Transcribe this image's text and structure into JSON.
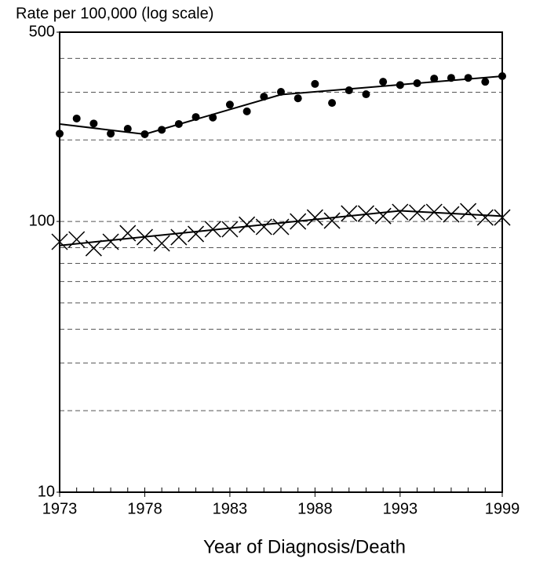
{
  "chart_data": {
    "type": "scatter",
    "y_axis_title": "Rate per 100,000 (log scale)",
    "x_axis_title": "Year of Diagnosis/Death",
    "log_y": true,
    "xlim": [
      1973,
      1999
    ],
    "xticks": [
      1973,
      1978,
      1983,
      1988,
      1993,
      1999
    ],
    "ylim": [
      10,
      500
    ],
    "yticks": [
      10,
      100,
      500
    ],
    "grid_values": [
      20,
      30,
      40,
      50,
      60,
      70,
      80,
      100,
      200,
      300,
      400
    ],
    "x": [
      1973,
      1974,
      1975,
      1976,
      1977,
      1978,
      1979,
      1980,
      1981,
      1982,
      1983,
      1984,
      1985,
      1986,
      1987,
      1988,
      1989,
      1990,
      1991,
      1992,
      1993,
      1994,
      1995,
      1996,
      1997,
      1998,
      1999
    ],
    "series": [
      {
        "marker": "circle",
        "color": "#000000",
        "values": [
          211,
          240,
          230,
          211,
          220,
          210,
          218,
          229,
          243,
          242,
          270,
          255,
          289,
          301,
          285,
          322,
          274,
          305,
          295,
          328,
          319,
          324,
          337,
          339,
          339,
          328,
          344
        ],
        "fit": {
          "x": [
            1973,
            1978,
            1986,
            1999
          ],
          "values": [
            229,
            210,
            294,
            344
          ]
        }
      },
      {
        "marker": "x",
        "color": "#000000",
        "values": [
          84.1,
          85.8,
          79.7,
          84.1,
          90.5,
          87.5,
          83,
          87.5,
          89.9,
          93.6,
          93.6,
          97.3,
          95.5,
          95.5,
          100,
          103.4,
          100.7,
          107,
          107,
          104.7,
          108.4,
          107.7,
          108.4,
          106.2,
          109.1,
          103.4,
          103.4
        ],
        "fit": {
          "x": [
            1973,
            1993,
            1999
          ],
          "values": [
            81.5,
            109.5,
            104.6
          ]
        }
      }
    ]
  }
}
